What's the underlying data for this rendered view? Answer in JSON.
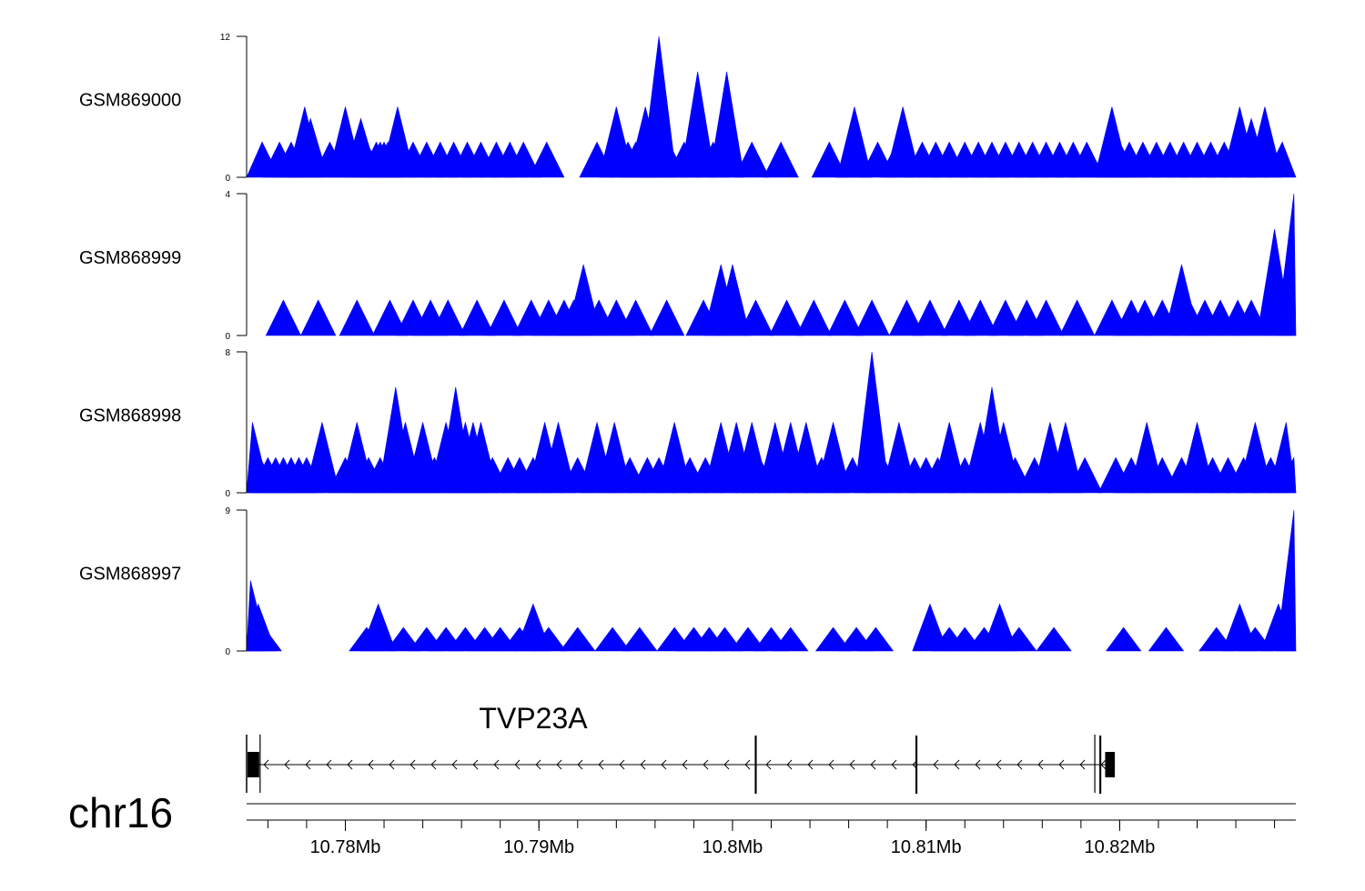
{
  "chart_data": {
    "type": "area",
    "tracks": [
      {
        "name": "GSM869000",
        "ylim": [
          0,
          12
        ],
        "tick_labels": [
          "0",
          "12"
        ],
        "color": "#0000ff",
        "peaks": [
          [
            10.7757,
            3
          ],
          [
            10.7766,
            3
          ],
          [
            10.7772,
            3
          ],
          [
            10.7776,
            3
          ],
          [
            10.7779,
            6
          ],
          [
            10.7782,
            5
          ],
          [
            10.7792,
            3
          ],
          [
            10.78,
            6
          ],
          [
            10.7808,
            5
          ],
          [
            10.7811,
            3
          ],
          [
            10.7816,
            3
          ],
          [
            10.7818,
            3
          ],
          [
            10.782,
            3
          ],
          [
            10.7822,
            3
          ],
          [
            10.7827,
            6
          ],
          [
            10.7835,
            3
          ],
          [
            10.7842,
            3
          ],
          [
            10.7849,
            3
          ],
          [
            10.7856,
            3
          ],
          [
            10.7863,
            3
          ],
          [
            10.787,
            3
          ],
          [
            10.7878,
            3
          ],
          [
            10.7885,
            3
          ],
          [
            10.7892,
            3
          ],
          [
            10.7904,
            3
          ],
          [
            10.793,
            3
          ],
          [
            10.794,
            6
          ],
          [
            10.7946,
            3
          ],
          [
            10.795,
            3
          ],
          [
            10.7955,
            6
          ],
          [
            10.7959,
            3
          ],
          [
            10.7962,
            12
          ],
          [
            10.7967,
            3
          ],
          [
            10.7975,
            3
          ],
          [
            10.7982,
            9
          ],
          [
            10.799,
            3
          ],
          [
            10.7997,
            9
          ],
          [
            10.801,
            3
          ],
          [
            10.8025,
            3
          ],
          [
            10.805,
            3
          ],
          [
            10.8062,
            3
          ],
          [
            10.8063,
            6
          ],
          [
            10.8075,
            3
          ],
          [
            10.8085,
            3
          ],
          [
            10.8088,
            6
          ],
          [
            10.8098,
            3
          ],
          [
            10.8105,
            3
          ],
          [
            10.8112,
            3
          ],
          [
            10.812,
            3
          ],
          [
            10.8127,
            3
          ],
          [
            10.8134,
            3
          ],
          [
            10.8141,
            3
          ],
          [
            10.8148,
            3
          ],
          [
            10.8155,
            3
          ],
          [
            10.8162,
            3
          ],
          [
            10.8169,
            3
          ],
          [
            10.8176,
            3
          ],
          [
            10.8183,
            3
          ],
          [
            10.8194,
            3
          ],
          [
            10.8196,
            6
          ],
          [
            10.82,
            3
          ],
          [
            10.8205,
            3
          ],
          [
            10.8212,
            3
          ],
          [
            10.8219,
            3
          ],
          [
            10.8226,
            3
          ],
          [
            10.8233,
            3
          ],
          [
            10.824,
            3
          ],
          [
            10.8247,
            3
          ],
          [
            10.8254,
            3
          ],
          [
            10.8262,
            6
          ],
          [
            10.8268,
            5
          ],
          [
            10.8275,
            6
          ],
          [
            10.8284,
            3
          ]
        ]
      },
      {
        "name": "GSM868999",
        "ylim": [
          0,
          4
        ],
        "tick_labels": [
          "0",
          "4"
        ],
        "color": "#0000ff",
        "peaks": [
          [
            10.7768,
            1
          ],
          [
            10.7786,
            1
          ],
          [
            10.7806,
            1
          ],
          [
            10.7823,
            1
          ],
          [
            10.7835,
            1
          ],
          [
            10.7844,
            1
          ],
          [
            10.7853,
            1
          ],
          [
            10.7868,
            1
          ],
          [
            10.7882,
            1
          ],
          [
            10.7896,
            1
          ],
          [
            10.7905,
            1
          ],
          [
            10.7913,
            1
          ],
          [
            10.7918,
            1
          ],
          [
            10.7923,
            2
          ],
          [
            10.7931,
            1
          ],
          [
            10.794,
            1
          ],
          [
            10.795,
            1
          ],
          [
            10.7966,
            1
          ],
          [
            10.7985,
            1
          ],
          [
            10.7994,
            2
          ],
          [
            10.8,
            2
          ],
          [
            10.8012,
            1
          ],
          [
            10.8028,
            1
          ],
          [
            10.8042,
            1
          ],
          [
            10.8058,
            1
          ],
          [
            10.8072,
            1
          ],
          [
            10.809,
            1
          ],
          [
            10.8102,
            1
          ],
          [
            10.8117,
            1
          ],
          [
            10.8128,
            1
          ],
          [
            10.8141,
            1
          ],
          [
            10.8152,
            1
          ],
          [
            10.8162,
            1
          ],
          [
            10.8178,
            1
          ],
          [
            10.8196,
            1
          ],
          [
            10.8206,
            1
          ],
          [
            10.8213,
            1
          ],
          [
            10.8222,
            1
          ],
          [
            10.8232,
            2
          ],
          [
            10.8236,
            1
          ],
          [
            10.8244,
            1
          ],
          [
            10.8252,
            1
          ],
          [
            10.8261,
            1
          ],
          [
            10.8268,
            1
          ],
          [
            10.828,
            3
          ],
          [
            10.8286,
            1
          ],
          [
            10.829,
            4
          ]
        ]
      },
      {
        "name": "GSM868998",
        "ylim": [
          0,
          8
        ],
        "tick_labels": [
          "0",
          "8"
        ],
        "color": "#0000ff",
        "peaks": [
          [
            10.7752,
            4
          ],
          [
            10.7756,
            2
          ],
          [
            10.776,
            2
          ],
          [
            10.7764,
            2
          ],
          [
            10.7768,
            2
          ],
          [
            10.7772,
            2
          ],
          [
            10.7776,
            2
          ],
          [
            10.778,
            2
          ],
          [
            10.7788,
            4
          ],
          [
            10.78,
            2
          ],
          [
            10.7806,
            4
          ],
          [
            10.7812,
            2
          ],
          [
            10.7818,
            2
          ],
          [
            10.7826,
            6
          ],
          [
            10.7831,
            4
          ],
          [
            10.7836,
            2
          ],
          [
            10.784,
            4
          ],
          [
            10.7846,
            2
          ],
          [
            10.7852,
            4
          ],
          [
            10.7857,
            6
          ],
          [
            10.7862,
            4
          ],
          [
            10.7866,
            4
          ],
          [
            10.787,
            4
          ],
          [
            10.7876,
            2
          ],
          [
            10.7884,
            2
          ],
          [
            10.789,
            2
          ],
          [
            10.7897,
            2
          ],
          [
            10.7903,
            4
          ],
          [
            10.791,
            4
          ],
          [
            10.792,
            2
          ],
          [
            10.793,
            4
          ],
          [
            10.7939,
            4
          ],
          [
            10.7947,
            2
          ],
          [
            10.7956,
            2
          ],
          [
            10.7962,
            2
          ],
          [
            10.797,
            4
          ],
          [
            10.7978,
            2
          ],
          [
            10.7986,
            2
          ],
          [
            10.7994,
            4
          ],
          [
            10.8002,
            4
          ],
          [
            10.801,
            4
          ],
          [
            10.8014,
            2
          ],
          [
            10.8022,
            4
          ],
          [
            10.803,
            4
          ],
          [
            10.8038,
            4
          ],
          [
            10.8046,
            2
          ],
          [
            10.8052,
            4
          ],
          [
            10.8062,
            2
          ],
          [
            10.8072,
            8
          ],
          [
            10.8078,
            2
          ],
          [
            10.8086,
            4
          ],
          [
            10.8094,
            2
          ],
          [
            10.81,
            2
          ],
          [
            10.8106,
            2
          ],
          [
            10.8112,
            4
          ],
          [
            10.812,
            2
          ],
          [
            10.8128,
            4
          ],
          [
            10.8134,
            6
          ],
          [
            10.814,
            4
          ],
          [
            10.8146,
            2
          ],
          [
            10.8156,
            2
          ],
          [
            10.8164,
            4
          ],
          [
            10.8172,
            4
          ],
          [
            10.8182,
            2
          ],
          [
            10.8198,
            2
          ],
          [
            10.8206,
            2
          ],
          [
            10.8214,
            4
          ],
          [
            10.8222,
            2
          ],
          [
            10.8232,
            2
          ],
          [
            10.824,
            4
          ],
          [
            10.8248,
            2
          ],
          [
            10.8256,
            2
          ],
          [
            10.8264,
            2
          ],
          [
            10.827,
            4
          ],
          [
            10.8278,
            2
          ],
          [
            10.8286,
            4
          ],
          [
            10.829,
            2
          ]
        ]
      },
      {
        "name": "GSM868997",
        "ylim": [
          0,
          9
        ],
        "tick_labels": [
          "0",
          "9"
        ],
        "color": "#0000ff",
        "peaks": [
          [
            10.7751,
            4.5
          ],
          [
            10.7755,
            3
          ],
          [
            10.7758,
            1.5
          ],
          [
            10.7811,
            1.5
          ],
          [
            10.7817,
            3
          ],
          [
            10.783,
            1.5
          ],
          [
            10.7842,
            1.5
          ],
          [
            10.7852,
            1.5
          ],
          [
            10.7862,
            1.5
          ],
          [
            10.7872,
            1.5
          ],
          [
            10.788,
            1.5
          ],
          [
            10.789,
            1.5
          ],
          [
            10.7897,
            3
          ],
          [
            10.7905,
            1.5
          ],
          [
            10.792,
            1.5
          ],
          [
            10.7938,
            1.5
          ],
          [
            10.7952,
            1.5
          ],
          [
            10.797,
            1.5
          ],
          [
            10.798,
            1.5
          ],
          [
            10.7988,
            1.5
          ],
          [
            10.7996,
            1.5
          ],
          [
            10.8008,
            1.5
          ],
          [
            10.802,
            1.5
          ],
          [
            10.803,
            1.5
          ],
          [
            10.8052,
            1.5
          ],
          [
            10.8064,
            1.5
          ],
          [
            10.8074,
            1.5
          ],
          [
            10.8102,
            3
          ],
          [
            10.8112,
            1.5
          ],
          [
            10.812,
            1.5
          ],
          [
            10.813,
            1.5
          ],
          [
            10.8138,
            3
          ],
          [
            10.8148,
            1.5
          ],
          [
            10.8166,
            1.5
          ],
          [
            10.8202,
            1.5
          ],
          [
            10.8224,
            1.5
          ],
          [
            10.825,
            1.5
          ],
          [
            10.8262,
            3
          ],
          [
            10.827,
            1.5
          ],
          [
            10.8282,
            3
          ],
          [
            10.829,
            9
          ]
        ]
      }
    ],
    "gene": {
      "name": "TVP23A",
      "strand": "-",
      "exons": [
        [
          10.77495,
          10.77555
        ],
        [
          10.80115,
          10.80125
        ],
        [
          10.80945,
          10.80955
        ],
        [
          10.81895,
          10.81905
        ],
        [
          10.81925,
          10.81975
        ]
      ]
    },
    "axis": {
      "chromosome": "chr16",
      "range": [
        10.7749,
        10.8291
      ],
      "tick_labels": [
        "10.78Mb",
        "10.79Mb",
        "10.8Mb",
        "10.81Mb",
        "10.82Mb"
      ],
      "tick_values": [
        10.78,
        10.79,
        10.8,
        10.81,
        10.82
      ],
      "minor_step": 0.002
    }
  }
}
